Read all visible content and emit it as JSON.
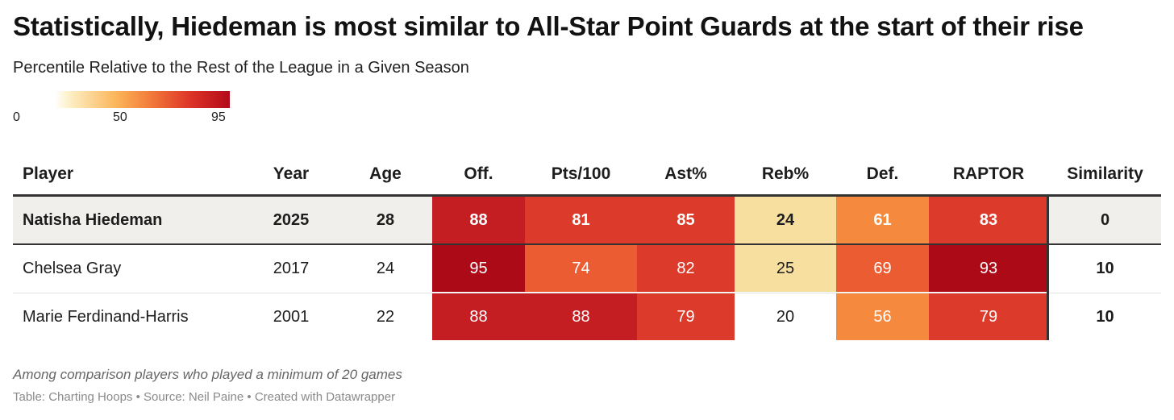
{
  "title": "Statistically, Hiedeman is most similar to All-Star Point Guards at the start of their rise",
  "subtitle": "Percentile Relative to the Rest of the League in a Given Season",
  "legend": {
    "ticks": [
      "0",
      "50",
      "95"
    ],
    "colors": [
      "#fdf0c8",
      "#fbb659",
      "#f27a3a",
      "#dc3327",
      "#b30a1a"
    ]
  },
  "colors": {
    "highlight_row_bg": "#f1efec",
    "heat_scale": [
      "#f7dfa0",
      "#f8c27a",
      "#f58a3e",
      "#eb5c33",
      "#dc3a2a",
      "#c41e23",
      "#ad0a18"
    ]
  },
  "chart_data": {
    "type": "table",
    "title": "Statistically, Hiedeman is most similar to All-Star Point Guards at the start of their rise",
    "subtitle": "Percentile Relative to the Rest of the League in a Given Season",
    "columns": [
      "Player",
      "Year",
      "Age",
      "Off.",
      "Pts/100",
      "Ast%",
      "Reb%",
      "Def.",
      "RAPTOR",
      "Similarity"
    ],
    "heatmap_columns": [
      "Off.",
      "Pts/100",
      "Ast%",
      "Reb%",
      "Def.",
      "RAPTOR"
    ],
    "color_range": [
      0,
      95
    ],
    "rows": [
      {
        "player": "Natisha Hiedeman",
        "year": "2025",
        "age": "28",
        "off": 88,
        "pts100": 81,
        "ast": 85,
        "reb": 24,
        "def": 61,
        "raptor": 83,
        "similarity": "0"
      },
      {
        "player": "Chelsea Gray",
        "year": "2017",
        "age": "24",
        "off": 95,
        "pts100": 74,
        "ast": 82,
        "reb": 25,
        "def": 69,
        "raptor": 93,
        "similarity": "10"
      },
      {
        "player": "Marie Ferdinand-Harris",
        "year": "2001",
        "age": "22",
        "off": 88,
        "pts100": 88,
        "ast": 79,
        "reb": 20,
        "def": 56,
        "raptor": 79,
        "similarity": "10"
      }
    ]
  },
  "footer": {
    "note": "Among comparison players who played a minimum of 20 games",
    "credit": "Table: Charting Hoops • Source: Neil Paine • Created with Datawrapper"
  }
}
